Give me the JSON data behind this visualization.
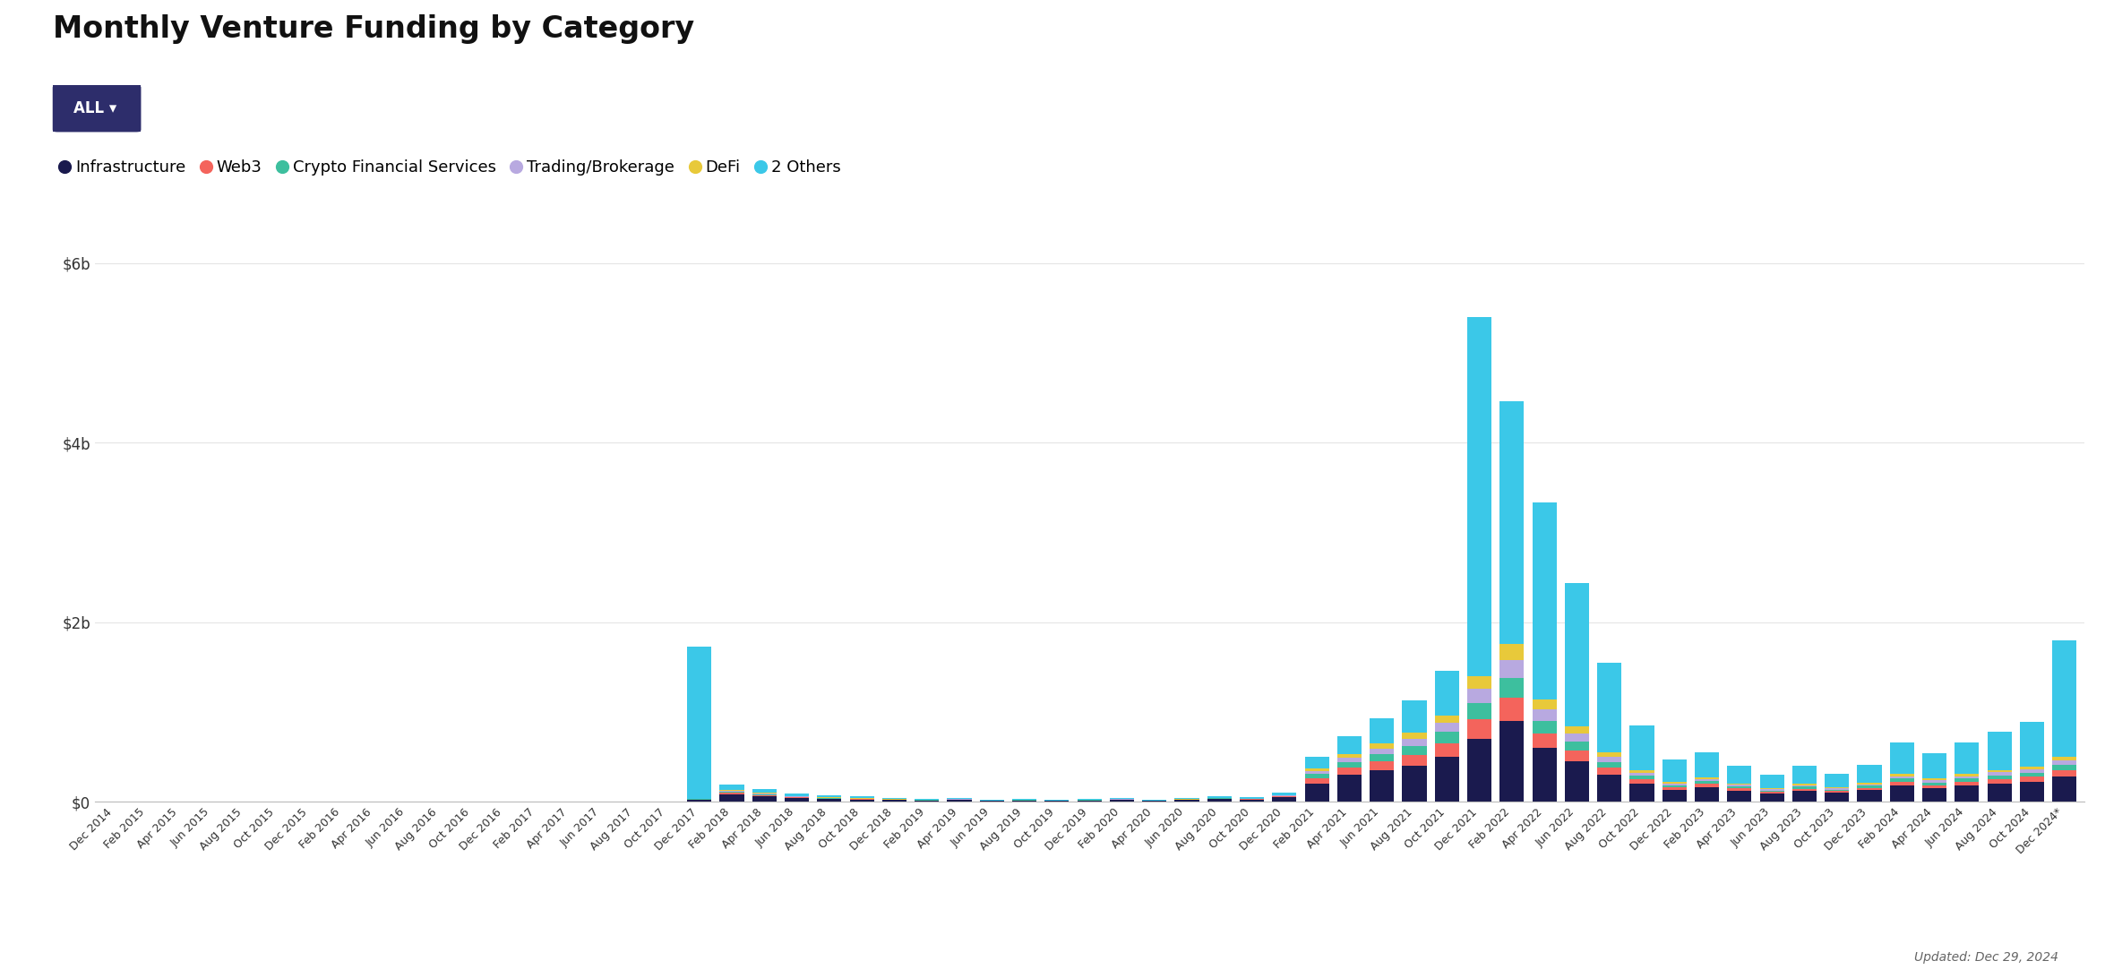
{
  "title": "Monthly Venture Funding by Category",
  "categories": [
    "Infrastructure",
    "Web3",
    "Crypto Financial Services",
    "Trading/Brokerage",
    "DeFi",
    "2 Others"
  ],
  "colors": [
    "#1a1a4e",
    "#f4645c",
    "#3dbf9e",
    "#b8a9e0",
    "#e8c93a",
    "#3bc8e8"
  ],
  "updated_text": "Updated: Dec 29, 2024",
  "ylabel_values": [
    0,
    2000000000,
    4000000000,
    6000000000
  ],
  "ylim": [
    0,
    6100000000
  ],
  "months": [
    "Dec 2014",
    "Feb 2015",
    "Apr 2015",
    "Jun 2015",
    "Aug 2015",
    "Oct 2015",
    "Dec 2015",
    "Feb 2016",
    "Apr 2016",
    "Jun 2016",
    "Aug 2016",
    "Oct 2016",
    "Dec 2016",
    "Feb 2017",
    "Apr 2017",
    "Jun 2017",
    "Aug 2017",
    "Oct 2017",
    "Dec 2017",
    "Feb 2018",
    "Apr 2018",
    "Jun 2018",
    "Aug 2018",
    "Oct 2018",
    "Dec 2018",
    "Feb 2019",
    "Apr 2019",
    "Jun 2019",
    "Aug 2019",
    "Oct 2019",
    "Dec 2019",
    "Feb 2020",
    "Apr 2020",
    "Jun 2020",
    "Aug 2020",
    "Oct 2020",
    "Dec 2020",
    "Feb 2021",
    "Apr 2021",
    "Jun 2021",
    "Aug 2021",
    "Oct 2021",
    "Dec 2021",
    "Feb 2022",
    "Apr 2022",
    "Jun 2022",
    "Aug 2022",
    "Oct 2022",
    "Dec 2022",
    "Feb 2023",
    "Apr 2023",
    "Jun 2023",
    "Aug 2023",
    "Oct 2023",
    "Dec 2023",
    "Feb 2024",
    "Apr 2024",
    "Jun 2024",
    "Aug 2024",
    "Oct 2024",
    "Dec 2024*"
  ],
  "data": {
    "Infrastructure": [
      0,
      0,
      0,
      0,
      0,
      0,
      0,
      0,
      0,
      0,
      0,
      0,
      0,
      0,
      0,
      0,
      0,
      0,
      20000000,
      80000000,
      60000000,
      40000000,
      30000000,
      25000000,
      20000000,
      15000000,
      20000000,
      10000000,
      15000000,
      10000000,
      15000000,
      20000000,
      10000000,
      20000000,
      30000000,
      25000000,
      50000000,
      200000000,
      300000000,
      350000000,
      400000000,
      500000000,
      700000000,
      900000000,
      600000000,
      450000000,
      300000000,
      200000000,
      130000000,
      160000000,
      120000000,
      90000000,
      120000000,
      100000000,
      130000000,
      180000000,
      150000000,
      180000000,
      200000000,
      220000000,
      280000000
    ],
    "Web3": [
      0,
      0,
      0,
      0,
      0,
      0,
      0,
      0,
      0,
      0,
      0,
      0,
      0,
      0,
      0,
      0,
      0,
      0,
      5000000,
      20000000,
      15000000,
      10000000,
      8000000,
      6000000,
      4000000,
      3000000,
      5000000,
      2000000,
      3000000,
      2000000,
      3000000,
      4000000,
      2000000,
      4000000,
      6000000,
      5000000,
      10000000,
      60000000,
      80000000,
      100000000,
      120000000,
      150000000,
      220000000,
      260000000,
      160000000,
      120000000,
      80000000,
      50000000,
      30000000,
      40000000,
      30000000,
      22000000,
      28000000,
      22000000,
      28000000,
      45000000,
      38000000,
      45000000,
      55000000,
      60000000,
      75000000
    ],
    "Crypto Financial Services": [
      0,
      0,
      0,
      0,
      0,
      0,
      0,
      0,
      0,
      0,
      0,
      0,
      0,
      0,
      0,
      0,
      0,
      0,
      5000000,
      15000000,
      12000000,
      8000000,
      6000000,
      5000000,
      3000000,
      3000000,
      4000000,
      2000000,
      3000000,
      2000000,
      3000000,
      4000000,
      2000000,
      3000000,
      5000000,
      4000000,
      8000000,
      50000000,
      65000000,
      80000000,
      100000000,
      130000000,
      180000000,
      220000000,
      140000000,
      100000000,
      65000000,
      40000000,
      25000000,
      30000000,
      22000000,
      17000000,
      22000000,
      17000000,
      22000000,
      35000000,
      30000000,
      35000000,
      42000000,
      48000000,
      60000000
    ],
    "Trading/Brokerage": [
      0,
      0,
      0,
      0,
      0,
      0,
      0,
      0,
      0,
      0,
      0,
      0,
      0,
      0,
      0,
      0,
      0,
      0,
      3000000,
      10000000,
      8000000,
      5000000,
      4000000,
      3000000,
      2000000,
      2000000,
      3000000,
      1000000,
      2000000,
      1000000,
      2000000,
      3000000,
      1000000,
      2000000,
      4000000,
      3000000,
      6000000,
      35000000,
      50000000,
      65000000,
      80000000,
      100000000,
      160000000,
      200000000,
      130000000,
      90000000,
      55000000,
      35000000,
      20000000,
      25000000,
      18000000,
      13000000,
      18000000,
      13000000,
      18000000,
      28000000,
      23000000,
      28000000,
      33000000,
      38000000,
      48000000
    ],
    "DeFi": [
      0,
      0,
      0,
      0,
      0,
      0,
      0,
      0,
      0,
      0,
      0,
      0,
      0,
      0,
      0,
      0,
      0,
      0,
      2000000,
      8000000,
      6000000,
      4000000,
      3000000,
      2000000,
      1500000,
      1500000,
      2000000,
      800000,
      1500000,
      800000,
      1500000,
      2000000,
      800000,
      1500000,
      3000000,
      2000000,
      4000000,
      25000000,
      40000000,
      55000000,
      70000000,
      85000000,
      140000000,
      180000000,
      110000000,
      80000000,
      50000000,
      30000000,
      18000000,
      20000000,
      15000000,
      11000000,
      15000000,
      11000000,
      15000000,
      22000000,
      19000000,
      22000000,
      27000000,
      31000000,
      40000000
    ],
    "2 Others": [
      0,
      0,
      0,
      0,
      3000000,
      0,
      0,
      0,
      0,
      0,
      0,
      0,
      0,
      0,
      0,
      0,
      0,
      5000000,
      1700000000,
      60000000,
      40000000,
      30000000,
      25000000,
      20000000,
      12000000,
      10000000,
      15000000,
      6000000,
      10000000,
      7000000,
      10000000,
      12000000,
      7000000,
      10000000,
      14000000,
      12000000,
      22000000,
      130000000,
      200000000,
      280000000,
      360000000,
      500000000,
      4000000000,
      2700000000,
      2200000000,
      1600000000,
      1000000000,
      500000000,
      250000000,
      280000000,
      200000000,
      150000000,
      200000000,
      150000000,
      200000000,
      350000000,
      280000000,
      350000000,
      430000000,
      500000000,
      1300000000
    ]
  },
  "background_color": "#ffffff",
  "grid_color": "#e5e5e5",
  "button_color": "#2d2d6b",
  "title_fontsize": 24,
  "tick_fontsize": 9,
  "legend_fontsize": 13
}
